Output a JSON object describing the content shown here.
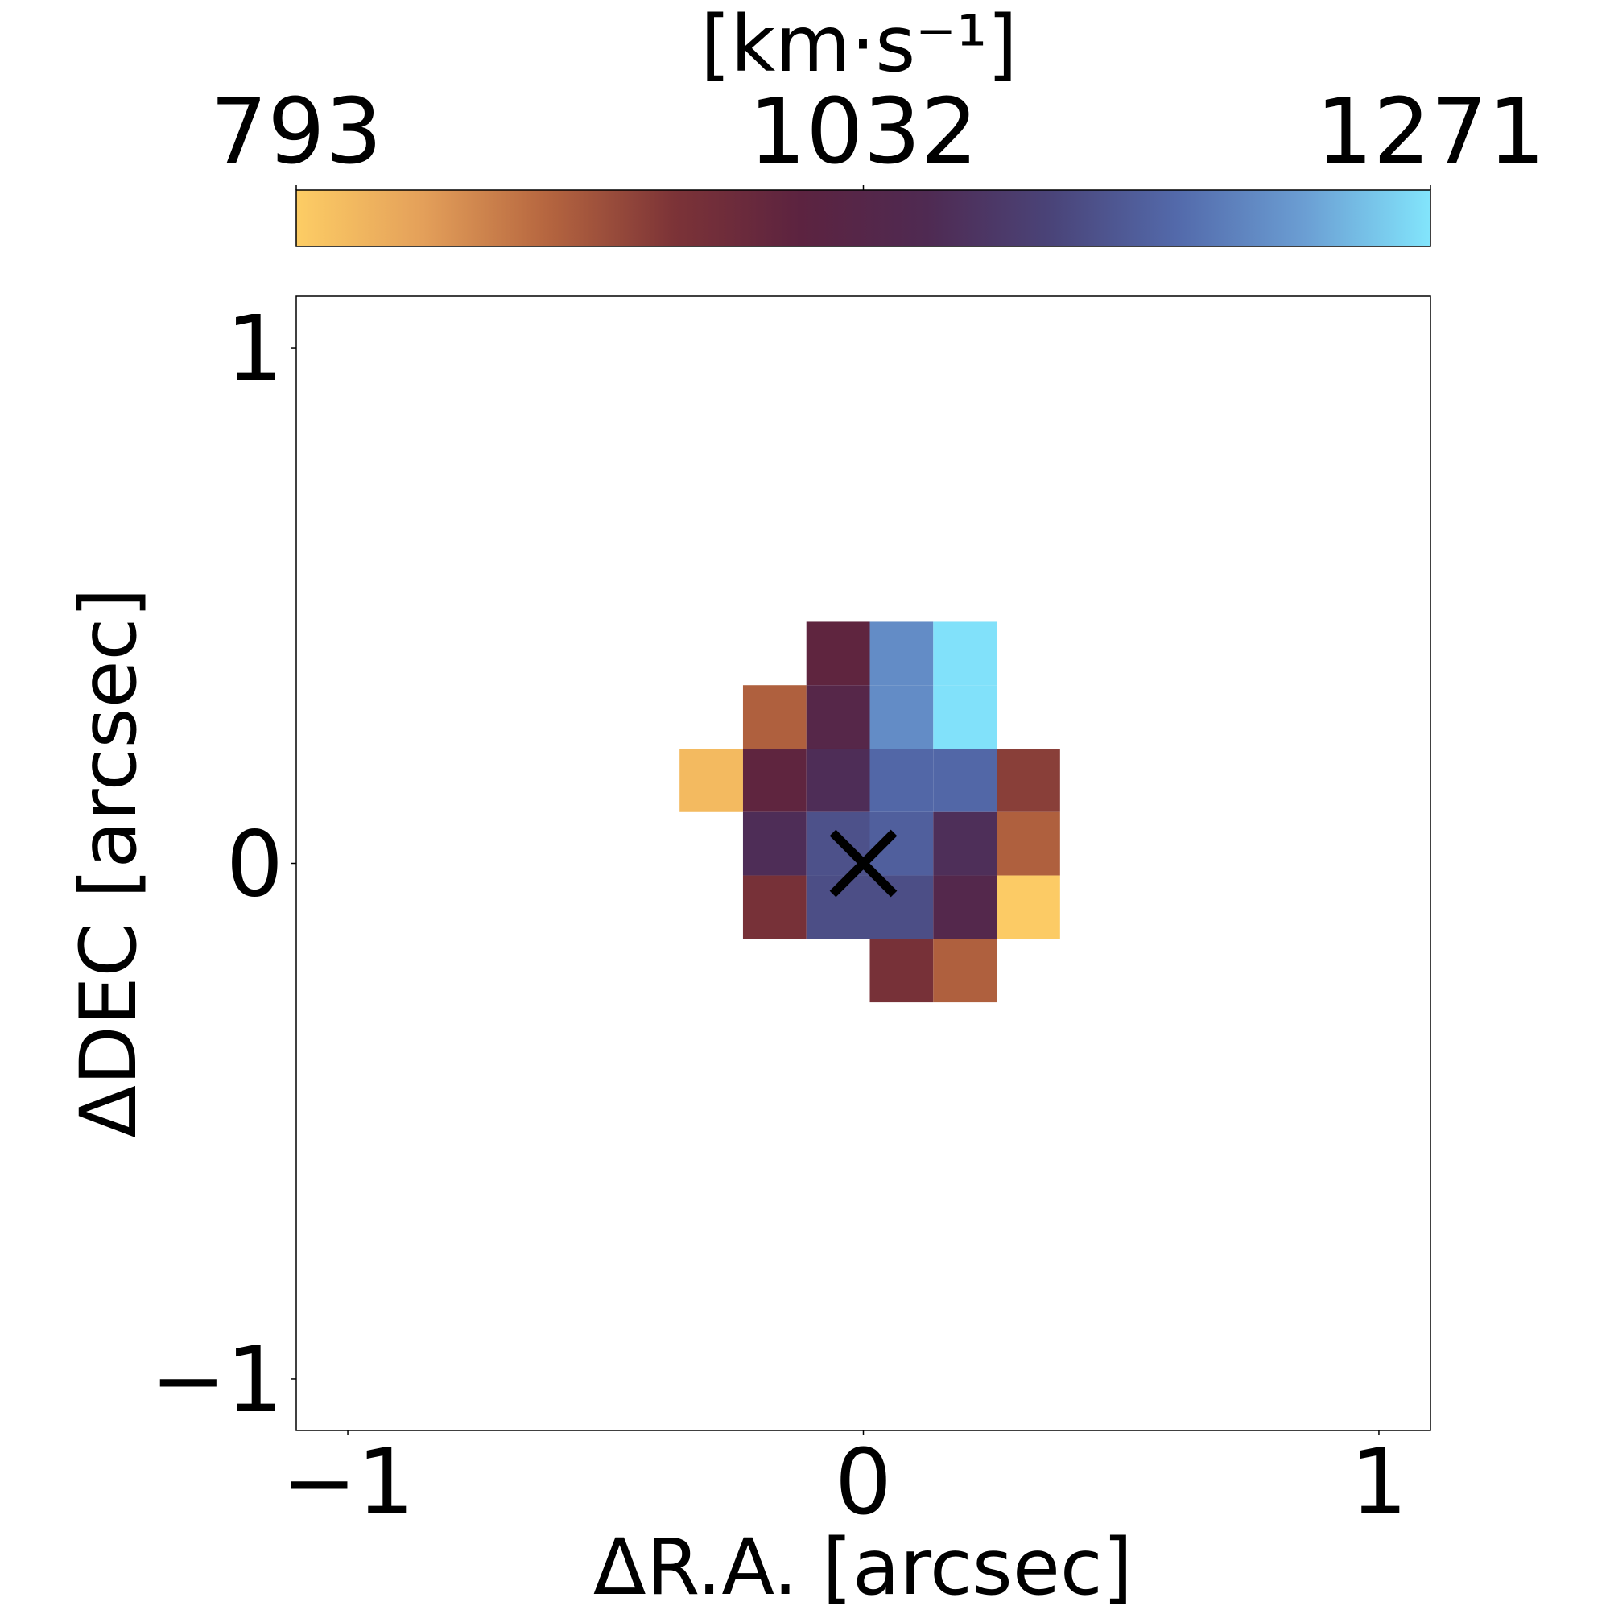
{
  "chart_data": {
    "type": "heatmap",
    "xlabel": "ΔR.A. [arcsec]",
    "ylabel": "ΔDEC [arcsec]",
    "xlim": [
      -1.1,
      1.1
    ],
    "ylim": [
      -1.1,
      1.1
    ],
    "x_ticks": [
      {
        "value": -1,
        "label": "−1"
      },
      {
        "value": 0,
        "label": "0"
      },
      {
        "value": 1,
        "label": "1"
      }
    ],
    "y_ticks": [
      {
        "value": 1,
        "label": "1"
      },
      {
        "value": 0,
        "label": "0"
      },
      {
        "value": -1,
        "label": "−1"
      }
    ],
    "pixel_size_arcsec": 0.123,
    "colorbar": {
      "label": "[km·s⁻¹]",
      "range": [
        793,
        1271
      ],
      "ticks": [
        {
          "value": 793,
          "label": "793"
        },
        {
          "value": 1032,
          "label": "1032"
        },
        {
          "value": 1271,
          "label": "1271"
        }
      ],
      "placement": "top",
      "colors": [
        "#fdcd65",
        "#e4a05a",
        "#b5653f",
        "#7c3337",
        "#5c2340",
        "#4f2a52",
        "#4a4479",
        "#536aab",
        "#6b9ed3",
        "#82e5fc"
      ]
    },
    "marker": {
      "symbol": "x",
      "x": 0.0,
      "y": 0.0
    },
    "cells": [
      {
        "x": -0.049,
        "y": 0.407,
        "value": 1000
      },
      {
        "x": 0.074,
        "y": 0.407,
        "value": 1200
      },
      {
        "x": 0.197,
        "y": 0.407,
        "value": 1268
      },
      {
        "x": -0.172,
        "y": 0.284,
        "value": 905
      },
      {
        "x": -0.049,
        "y": 0.284,
        "value": 1032
      },
      {
        "x": 0.074,
        "y": 0.284,
        "value": 1200
      },
      {
        "x": 0.197,
        "y": 0.284,
        "value": 1268
      },
      {
        "x": -0.295,
        "y": 0.161,
        "value": 815
      },
      {
        "x": -0.172,
        "y": 0.161,
        "value": 1000
      },
      {
        "x": -0.049,
        "y": 0.161,
        "value": 1065
      },
      {
        "x": 0.074,
        "y": 0.161,
        "value": 1160
      },
      {
        "x": 0.197,
        "y": 0.161,
        "value": 1160
      },
      {
        "x": 0.32,
        "y": 0.161,
        "value": 940
      },
      {
        "x": -0.172,
        "y": 0.038,
        "value": 1065
      },
      {
        "x": -0.049,
        "y": 0.038,
        "value": 1130
      },
      {
        "x": 0.074,
        "y": 0.038,
        "value": 1150
      },
      {
        "x": 0.197,
        "y": 0.038,
        "value": 1068
      },
      {
        "x": 0.32,
        "y": 0.038,
        "value": 905
      },
      {
        "x": -0.172,
        "y": -0.085,
        "value": 960
      },
      {
        "x": -0.049,
        "y": -0.085,
        "value": 1125
      },
      {
        "x": 0.074,
        "y": -0.085,
        "value": 1125
      },
      {
        "x": 0.197,
        "y": -0.085,
        "value": 1040
      },
      {
        "x": 0.32,
        "y": -0.085,
        "value": 795
      },
      {
        "x": 0.074,
        "y": -0.208,
        "value": 960
      },
      {
        "x": 0.197,
        "y": -0.208,
        "value": 905
      }
    ]
  }
}
